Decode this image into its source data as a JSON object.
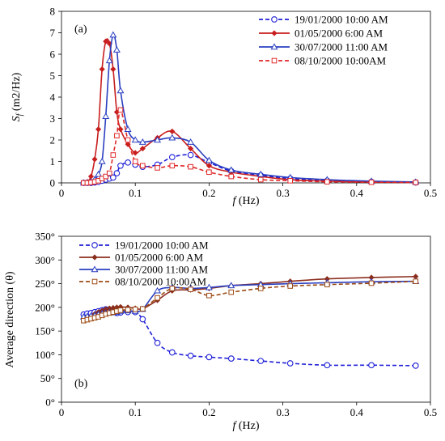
{
  "chart_data": [
    {
      "type": "line",
      "panel_label": "(a)",
      "xlabel": "f (Hz)",
      "xlabel_italic": "f",
      "xlabel_rest": " (Hz)",
      "ylabel": "Sf (m2/Hz)",
      "ylabel_base": "S",
      "ylabel_sub": "f",
      "ylabel_rest": " (m2/Hz)",
      "xlim": [
        0,
        0.5
      ],
      "ylim": [
        0,
        8
      ],
      "x_ticks": [
        "0",
        "0.1",
        "0.2",
        "0.3",
        "0.4",
        "0.5"
      ],
      "y_ticks": [
        "0",
        "1",
        "2",
        "3",
        "4",
        "5",
        "6",
        "7",
        "8"
      ],
      "grid": false,
      "legend_position": "top-right",
      "series": [
        {
          "name": "19/01/2000 10:00 AM",
          "color": "#1f1fd8",
          "line_style": "dashed",
          "marker": "circle-open",
          "x": [
            0.03,
            0.035,
            0.04,
            0.045,
            0.05,
            0.055,
            0.06,
            0.065,
            0.07,
            0.075,
            0.08,
            0.09,
            0.1,
            0.11,
            0.13,
            0.15,
            0.175,
            0.2,
            0.23,
            0.27,
            0.31,
            0.36,
            0.42,
            0.48
          ],
          "y": [
            0,
            0,
            0,
            0.02,
            0.05,
            0.1,
            0.15,
            0.2,
            0.25,
            0.45,
            0.8,
            0.95,
            0.85,
            0.75,
            0.85,
            1.2,
            1.3,
            0.95,
            0.55,
            0.35,
            0.2,
            0.1,
            0.05,
            0.02
          ]
        },
        {
          "name": "01/05/2000 6:00 AM",
          "color": "#c81e1e",
          "line_style": "solid",
          "marker": "diamond-filled",
          "x": [
            0.03,
            0.035,
            0.04,
            0.045,
            0.05,
            0.055,
            0.06,
            0.065,
            0.07,
            0.075,
            0.08,
            0.09,
            0.1,
            0.11,
            0.13,
            0.15,
            0.175,
            0.2,
            0.23,
            0.27,
            0.31,
            0.36,
            0.42,
            0.48
          ],
          "y": [
            0,
            0.05,
            0.3,
            1.1,
            2.5,
            5.3,
            6.6,
            6.5,
            5.3,
            3.3,
            2.5,
            1.8,
            1.4,
            1.6,
            2.1,
            2.4,
            1.6,
            0.8,
            0.5,
            0.3,
            0.15,
            0.08,
            0.04,
            0.02
          ]
        },
        {
          "name": "30/07/2000 11:00 AM",
          "color": "#2a3fc0",
          "line_style": "solid",
          "marker": "triangle-open",
          "x": [
            0.03,
            0.035,
            0.04,
            0.045,
            0.05,
            0.055,
            0.06,
            0.065,
            0.07,
            0.075,
            0.08,
            0.09,
            0.1,
            0.11,
            0.13,
            0.15,
            0.175,
            0.2,
            0.23,
            0.27,
            0.31,
            0.36,
            0.42,
            0.48
          ],
          "y": [
            0,
            0,
            0.05,
            0.15,
            0.4,
            1.0,
            3.1,
            5.7,
            6.9,
            6.2,
            4.3,
            2.5,
            2.0,
            1.9,
            2.0,
            2.1,
            1.9,
            1.05,
            0.6,
            0.4,
            0.25,
            0.15,
            0.08,
            0.04
          ]
        },
        {
          "name": "08/10/2000 10:00AM",
          "color": "#e02828",
          "line_style": "dashed",
          "marker": "square-open",
          "x": [
            0.03,
            0.035,
            0.04,
            0.045,
            0.05,
            0.055,
            0.06,
            0.065,
            0.07,
            0.075,
            0.08,
            0.09,
            0.1,
            0.11,
            0.13,
            0.15,
            0.175,
            0.2,
            0.23,
            0.27,
            0.31,
            0.36,
            0.42,
            0.48
          ],
          "y": [
            0,
            0,
            0.02,
            0.05,
            0.1,
            0.2,
            0.3,
            0.45,
            1.3,
            2.2,
            3.4,
            2.0,
            1.0,
            0.8,
            0.7,
            0.8,
            0.75,
            0.5,
            0.3,
            0.15,
            0.1,
            0.05,
            0.03,
            0.02
          ]
        }
      ]
    },
    {
      "type": "line",
      "panel_label": "(b)",
      "xlabel": "f (Hz)",
      "xlabel_italic": "f",
      "xlabel_rest": " (Hz)",
      "ylabel": "Average direction (θ)",
      "xlim": [
        0,
        0.5
      ],
      "ylim": [
        0,
        350
      ],
      "x_ticks": [
        "0",
        "0.1",
        "0.2",
        "0.3",
        "0.4",
        "0.5"
      ],
      "y_ticks": [
        "0°",
        "50°",
        "100°",
        "150°",
        "200°",
        "250°",
        "300°",
        "350°"
      ],
      "grid": false,
      "legend_position": "top-left",
      "series": [
        {
          "name": "19/01/2000 10:00 AM",
          "color": "#1f1fd8",
          "line_style": "dashed",
          "marker": "circle-open",
          "x": [
            0.03,
            0.035,
            0.04,
            0.045,
            0.05,
            0.055,
            0.06,
            0.065,
            0.07,
            0.075,
            0.08,
            0.09,
            0.1,
            0.11,
            0.13,
            0.15,
            0.175,
            0.2,
            0.23,
            0.27,
            0.31,
            0.36,
            0.42,
            0.48
          ],
          "y": [
            185,
            187,
            188,
            190,
            192,
            194,
            196,
            193,
            190,
            188,
            189,
            190,
            190,
            175,
            125,
            105,
            98,
            95,
            92,
            87,
            82,
            78,
            78,
            77
          ]
        },
        {
          "name": "01/05/2000 6:00 AM",
          "color": "#8b2e1e",
          "line_style": "solid",
          "marker": "diamond-filled",
          "x": [
            0.03,
            0.035,
            0.04,
            0.045,
            0.05,
            0.055,
            0.06,
            0.065,
            0.07,
            0.075,
            0.08,
            0.09,
            0.1,
            0.11,
            0.13,
            0.15,
            0.175,
            0.2,
            0.23,
            0.27,
            0.31,
            0.36,
            0.42,
            0.48
          ],
          "y": [
            175,
            178,
            182,
            186,
            190,
            193,
            196,
            198,
            199,
            200,
            201,
            200,
            198,
            197,
            215,
            235,
            237,
            240,
            246,
            250,
            255,
            260,
            263,
            265
          ]
        },
        {
          "name": "30/07/2000 11:00 AM",
          "color": "#2a3fc0",
          "line_style": "solid",
          "marker": "triangle-open",
          "x": [
            0.03,
            0.035,
            0.04,
            0.045,
            0.05,
            0.055,
            0.06,
            0.065,
            0.07,
            0.075,
            0.08,
            0.09,
            0.1,
            0.11,
            0.13,
            0.15,
            0.175,
            0.2,
            0.23,
            0.27,
            0.31,
            0.36,
            0.42,
            0.48
          ],
          "y": [
            180,
            181,
            182,
            183,
            185,
            187,
            188,
            189,
            189,
            190,
            192,
            193,
            192,
            196,
            235,
            242,
            240,
            242,
            246,
            248,
            250,
            252,
            254,
            255
          ]
        },
        {
          "name": "08/10/2000 10:00AM",
          "color": "#9c4a14",
          "line_style": "dashed",
          "marker": "square-open",
          "x": [
            0.03,
            0.035,
            0.04,
            0.045,
            0.05,
            0.055,
            0.06,
            0.065,
            0.07,
            0.075,
            0.08,
            0.09,
            0.1,
            0.11,
            0.13,
            0.15,
            0.175,
            0.2,
            0.23,
            0.27,
            0.31,
            0.36,
            0.42,
            0.48
          ],
          "y": [
            172,
            174,
            176,
            178,
            180,
            183,
            186,
            188,
            190,
            192,
            194,
            195,
            196,
            197,
            220,
            240,
            238,
            225,
            232,
            240,
            245,
            248,
            251,
            255
          ]
        }
      ]
    }
  ]
}
